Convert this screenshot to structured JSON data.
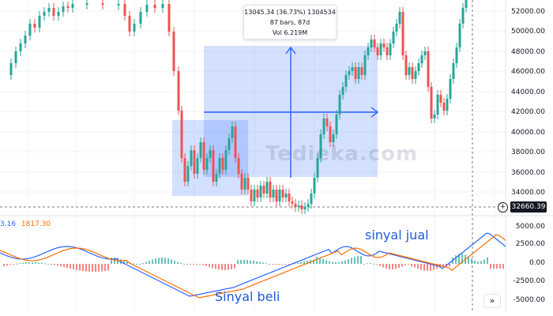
{
  "tooltip": {
    "line1": "13045.34 (36.73%) 1304534",
    "line2": "87 bars, 87d",
    "line3": "Vol 6.219M"
  },
  "price_axis": [
    "52000.00",
    "50000.00",
    "48000.00",
    "46000.00",
    "44000.00",
    "42000.00",
    "40000.00",
    "38000.00",
    "36000.00",
    "34000.00"
  ],
  "crosshair_price": "32660.39",
  "macd_axis": [
    "5000.00",
    "2500.00",
    "0.00",
    "-2500.00",
    "-5000.00"
  ],
  "macd_legend": {
    "value1": "3.16",
    "value2": "1817.30",
    "value1_color": "#2962ff",
    "value2_color": "#ff6d00"
  },
  "annotations": {
    "sell": "sinyal jual",
    "buy": "Sinyal beli"
  },
  "watermark": "Tedieka.com",
  "icons": {
    "plus": "plus-circle-icon",
    "scroll": "chevron-double-right-icon"
  },
  "colors": {
    "up": "#26a69a",
    "down": "#ef5350",
    "macd": "#2962ff",
    "signal": "#ff6d00",
    "highlight": "#2962ff"
  }
}
